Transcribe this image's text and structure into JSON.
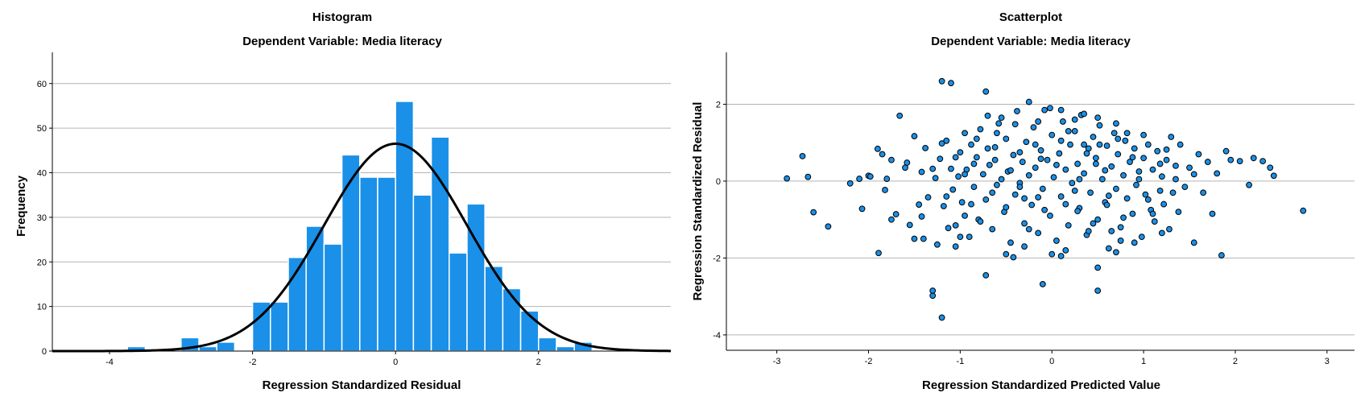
{
  "colors": {
    "bar_fill": "#1a90e8",
    "bar_stroke": "#ffffff",
    "curve": "#000000",
    "grid": "#b4b4b4",
    "point_fill": "#1a90e8",
    "point_stroke": "#000000"
  },
  "chart_data": [
    {
      "type": "bar",
      "title": "Histogram",
      "subtitle": "Dependent Variable: Media literacy",
      "xlabel": "Regression Standardized Residual",
      "ylabel": "Frequency",
      "xlim": [
        -4.8,
        3.85
      ],
      "ylim": [
        0,
        67
      ],
      "xticks": [
        "-4",
        "-2",
        "0",
        "2"
      ],
      "xtick_values": [
        -4,
        -2,
        0,
        2
      ],
      "yticks": [
        "0",
        "10",
        "20",
        "30",
        "40",
        "50",
        "60"
      ],
      "ytick_values": [
        0,
        10,
        20,
        30,
        40,
        50,
        60
      ],
      "grid": "horizontal",
      "bin_width": 0.25,
      "bins": [
        {
          "x0": -3.75,
          "value": 1
        },
        {
          "x0": -3.5,
          "value": 0
        },
        {
          "x0": -3.25,
          "value": 0
        },
        {
          "x0": -3.0,
          "value": 3
        },
        {
          "x0": -2.75,
          "value": 1
        },
        {
          "x0": -2.5,
          "value": 2
        },
        {
          "x0": -2.25,
          "value": 0
        },
        {
          "x0": -2.0,
          "value": 11
        },
        {
          "x0": -1.75,
          "value": 11
        },
        {
          "x0": -1.5,
          "value": 21
        },
        {
          "x0": -1.25,
          "value": 28
        },
        {
          "x0": -1.0,
          "value": 24
        },
        {
          "x0": -0.75,
          "value": 44
        },
        {
          "x0": -0.5,
          "value": 39
        },
        {
          "x0": -0.25,
          "value": 39
        },
        {
          "x0": 0.0,
          "value": 56
        },
        {
          "x0": 0.25,
          "value": 35
        },
        {
          "x0": 0.5,
          "value": 48
        },
        {
          "x0": 0.75,
          "value": 22
        },
        {
          "x0": 1.0,
          "value": 33
        },
        {
          "x0": 1.25,
          "value": 19
        },
        {
          "x0": 1.5,
          "value": 14
        },
        {
          "x0": 1.75,
          "value": 9
        },
        {
          "x0": 2.0,
          "value": 3
        },
        {
          "x0": 2.25,
          "value": 1
        },
        {
          "x0": 2.5,
          "value": 2
        }
      ],
      "normal_curve": {
        "mean": 0,
        "sd": 1,
        "peak": 46.5
      }
    },
    {
      "type": "scatter",
      "title": "Scatterplot",
      "subtitle": "Dependent Variable: Media literacy",
      "xlabel": "Regression Standardized Predicted Value",
      "ylabel": "Regression Standardized Residual",
      "xlim": [
        -3.55,
        3.3
      ],
      "ylim": [
        -4.4,
        3.35
      ],
      "xticks": [
        "-3",
        "-2",
        "-1",
        "0",
        "1",
        "2",
        "3"
      ],
      "xtick_values": [
        -3,
        -2,
        -1,
        0,
        1,
        2,
        3
      ],
      "yticks": [
        "-4",
        "-2",
        "0",
        "2"
      ],
      "ytick_values": [
        -4,
        -2,
        0,
        2
      ],
      "grid": "horizontal",
      "points": [
        [
          -2.89,
          0.07
        ],
        [
          -2.72,
          0.65
        ],
        [
          -2.66,
          0.11
        ],
        [
          -2.6,
          -0.81
        ],
        [
          -2.44,
          -1.18
        ],
        [
          -2.2,
          -0.06
        ],
        [
          -2.1,
          0.06
        ],
        [
          -2.07,
          -0.72
        ],
        [
          -2.0,
          0.14
        ],
        [
          -1.98,
          0.12
        ],
        [
          -1.9,
          0.84
        ],
        [
          -1.89,
          -1.87
        ],
        [
          -1.85,
          0.7
        ],
        [
          -1.82,
          -0.23
        ],
        [
          -1.8,
          0.06
        ],
        [
          -1.75,
          0.55
        ],
        [
          -1.7,
          -0.86
        ],
        [
          -1.66,
          1.7
        ],
        [
          -1.58,
          0.48
        ],
        [
          -1.55,
          -1.14
        ],
        [
          -1.5,
          1.17
        ],
        [
          -1.45,
          -0.61
        ],
        [
          -1.42,
          0.24
        ],
        [
          -1.4,
          -1.5
        ],
        [
          -1.38,
          0.86
        ],
        [
          -1.35,
          -0.42
        ],
        [
          -1.3,
          -2.98
        ],
        [
          -1.27,
          0.08
        ],
        [
          -1.25,
          -1.65
        ],
        [
          -1.22,
          0.58
        ],
        [
          -1.2,
          0.98
        ],
        [
          -1.18,
          -0.65
        ],
        [
          -1.15,
          1.05
        ],
        [
          -1.13,
          -1.22
        ],
        [
          -1.1,
          0.32
        ],
        [
          -1.08,
          -0.22
        ],
        [
          -1.05,
          -1.7
        ],
        [
          -1.02,
          0.12
        ],
        [
          -1.0,
          0.75
        ],
        [
          -0.98,
          -0.55
        ],
        [
          -0.95,
          1.25
        ],
        [
          -0.93,
          0.3
        ],
        [
          -0.9,
          -1.45
        ],
        [
          -0.88,
          0.95
        ],
        [
          -0.85,
          -0.15
        ],
        [
          -0.82,
          0.62
        ],
        [
          -0.8,
          -1.0
        ],
        [
          -0.78,
          1.35
        ],
        [
          -0.75,
          0.18
        ],
        [
          -0.72,
          -0.48
        ],
        [
          -0.7,
          1.7
        ],
        [
          -0.68,
          0.42
        ],
        [
          -0.65,
          -1.25
        ],
        [
          -0.62,
          0.88
        ],
        [
          -0.6,
          -0.1
        ],
        [
          -0.58,
          1.5
        ],
        [
          -0.55,
          0.05
        ],
        [
          -0.52,
          -0.8
        ],
        [
          -0.5,
          1.1
        ],
        [
          -0.48,
          0.25
        ],
        [
          -0.45,
          -1.6
        ],
        [
          -0.42,
          0.68
        ],
        [
          -0.4,
          -0.35
        ],
        [
          -0.38,
          1.82
        ],
        [
          -0.35,
          -0.05
        ],
        [
          -0.32,
          0.5
        ],
        [
          -0.3,
          -1.1
        ],
        [
          -0.28,
          1.02
        ],
        [
          -0.25,
          0.15
        ],
        [
          -0.22,
          -0.62
        ],
        [
          -0.2,
          1.4
        ],
        [
          -0.18,
          0.35
        ],
        [
          -0.15,
          -1.35
        ],
        [
          -0.12,
          0.8
        ],
        [
          -0.1,
          -0.2
        ],
        [
          -0.08,
          1.85
        ],
        [
          -0.05,
          0.55
        ],
        [
          -0.02,
          -0.9
        ],
        [
          0.0,
          1.2
        ],
        [
          0.02,
          0.1
        ],
        [
          0.05,
          -1.55
        ],
        [
          0.08,
          0.72
        ],
        [
          0.1,
          -0.4
        ],
        [
          0.12,
          1.55
        ],
        [
          0.15,
          0.3
        ],
        [
          0.18,
          -1.15
        ],
        [
          0.2,
          0.95
        ],
        [
          0.22,
          -0.05
        ],
        [
          0.25,
          1.3
        ],
        [
          0.28,
          0.45
        ],
        [
          0.3,
          -0.7
        ],
        [
          0.32,
          1.72
        ],
        [
          0.35,
          0.2
        ],
        [
          0.38,
          -1.4
        ],
        [
          0.4,
          0.85
        ],
        [
          0.42,
          -0.3
        ],
        [
          0.45,
          1.15
        ],
        [
          0.48,
          0.6
        ],
        [
          0.5,
          -1.0
        ],
        [
          0.52,
          1.45
        ],
        [
          0.55,
          0.05
        ],
        [
          0.58,
          -0.55
        ],
        [
          0.6,
          0.92
        ],
        [
          0.62,
          -1.75
        ],
        [
          0.65,
          0.38
        ],
        [
          0.68,
          1.25
        ],
        [
          0.7,
          -0.2
        ],
        [
          0.72,
          0.7
        ],
        [
          0.75,
          -1.2
        ],
        [
          0.78,
          0.15
        ],
        [
          0.8,
          1.05
        ],
        [
          0.82,
          -0.45
        ],
        [
          0.85,
          0.5
        ],
        [
          0.88,
          -0.85
        ],
        [
          0.9,
          0.85
        ],
        [
          0.92,
          -0.1
        ],
        [
          0.95,
          0.25
        ],
        [
          0.98,
          -1.45
        ],
        [
          1.0,
          0.6
        ],
        [
          1.02,
          -0.35
        ],
        [
          1.05,
          0.95
        ],
        [
          1.08,
          -0.75
        ],
        [
          1.1,
          0.3
        ],
        [
          1.12,
          -1.05
        ],
        [
          1.15,
          0.78
        ],
        [
          1.18,
          -0.25
        ],
        [
          1.2,
          0.12
        ],
        [
          1.22,
          -0.6
        ],
        [
          1.25,
          0.55
        ],
        [
          1.28,
          -1.25
        ],
        [
          1.3,
          1.15
        ],
        [
          1.32,
          -0.3
        ],
        [
          1.35,
          0.4
        ],
        [
          1.38,
          -0.8
        ],
        [
          1.4,
          0.95
        ],
        [
          1.45,
          -0.15
        ],
        [
          1.5,
          0.35
        ],
        [
          1.55,
          -1.6
        ],
        [
          1.6,
          0.7
        ],
        [
          1.65,
          -0.3
        ],
        [
          1.7,
          0.5
        ],
        [
          1.75,
          -0.85
        ],
        [
          1.8,
          0.2
        ],
        [
          1.85,
          -1.93
        ],
        [
          1.9,
          0.78
        ],
        [
          1.95,
          0.55
        ],
        [
          2.05,
          0.52
        ],
        [
          2.15,
          -0.1
        ],
        [
          2.2,
          0.6
        ],
        [
          2.3,
          0.52
        ],
        [
          2.38,
          0.35
        ],
        [
          2.42,
          0.14
        ],
        [
          2.74,
          -0.77
        ],
        [
          -1.2,
          2.6
        ],
        [
          -1.1,
          2.55
        ],
        [
          -0.72,
          2.33
        ],
        [
          -0.55,
          1.65
        ],
        [
          -0.25,
          2.06
        ],
        [
          -0.15,
          1.55
        ],
        [
          0.1,
          1.85
        ],
        [
          -0.02,
          1.9
        ],
        [
          0.35,
          1.75
        ],
        [
          0.5,
          1.65
        ],
        [
          0.7,
          1.5
        ],
        [
          0.25,
          1.6
        ],
        [
          -0.1,
          -2.68
        ],
        [
          0.5,
          -2.85
        ],
        [
          -1.3,
          -2.85
        ],
        [
          -1.2,
          -3.55
        ],
        [
          -0.72,
          -2.45
        ],
        [
          0.5,
          -2.25
        ],
        [
          -0.42,
          -1.98
        ],
        [
          -0.5,
          -1.9
        ],
        [
          0.0,
          -1.9
        ],
        [
          0.1,
          -1.95
        ],
        [
          0.15,
          -1.8
        ],
        [
          0.7,
          -1.85
        ],
        [
          0.75,
          -1.55
        ],
        [
          -1.5,
          -1.5
        ],
        [
          -1.0,
          -1.45
        ],
        [
          1.2,
          -1.35
        ],
        [
          -1.75,
          -1.0
        ],
        [
          0.4,
          -1.3
        ],
        [
          -0.3,
          -1.7
        ],
        [
          0.9,
          -1.6
        ],
        [
          -0.65,
          -0.3
        ],
        [
          -0.35,
          0.75
        ],
        [
          0.15,
          -0.6
        ],
        [
          0.35,
          0.95
        ],
        [
          -0.85,
          0.45
        ],
        [
          0.62,
          -0.38
        ],
        [
          -0.95,
          -0.9
        ],
        [
          0.82,
          1.25
        ],
        [
          -1.05,
          0.62
        ],
        [
          1.05,
          -0.48
        ],
        [
          -0.45,
          0.28
        ],
        [
          0.28,
          -0.78
        ],
        [
          -0.18,
          0.95
        ],
        [
          0.58,
          0.28
        ],
        [
          -0.78,
          -1.05
        ],
        [
          0.95,
          0.05
        ],
        [
          -0.3,
          -0.45
        ],
        [
          0.05,
          0.42
        ],
        [
          -0.6,
          1.25
        ],
        [
          0.45,
          -1.1
        ],
        [
          1.25,
          0.82
        ],
        [
          -1.3,
          0.32
        ],
        [
          0.72,
          1.1
        ],
        [
          -0.08,
          -0.75
        ],
        [
          0.3,
          0.05
        ],
        [
          -1.42,
          -0.92
        ],
        [
          1.55,
          0.18
        ],
        [
          -0.4,
          1.48
        ],
        [
          0.65,
          -1.3
        ],
        [
          -0.95,
          0.18
        ],
        [
          0.18,
          1.3
        ],
        [
          -0.25,
          -1.25
        ],
        [
          1.1,
          -0.85
        ],
        [
          -0.7,
          0.85
        ],
        [
          0.48,
          0.45
        ],
        [
          -1.15,
          -0.4
        ],
        [
          0.88,
          0.62
        ],
        [
          -0.12,
          0.58
        ],
        [
          0.25,
          -0.25
        ],
        [
          -0.5,
          -0.68
        ],
        [
          1.35,
          0.05
        ],
        [
          -0.82,
          1.1
        ],
        [
          0.6,
          -0.62
        ],
        [
          -1.6,
          0.35
        ],
        [
          0.1,
          1.05
        ],
        [
          -0.35,
          -0.15
        ],
        [
          0.78,
          -0.95
        ],
        [
          -0.62,
          0.55
        ],
        [
          1.0,
          1.2
        ],
        [
          -1.05,
          -1.15
        ],
        [
          0.38,
          0.72
        ],
        [
          -0.15,
          -0.42
        ],
        [
          0.52,
          0.95
        ],
        [
          -0.88,
          -0.6
        ],
        [
          1.18,
          0.45
        ]
      ]
    }
  ]
}
